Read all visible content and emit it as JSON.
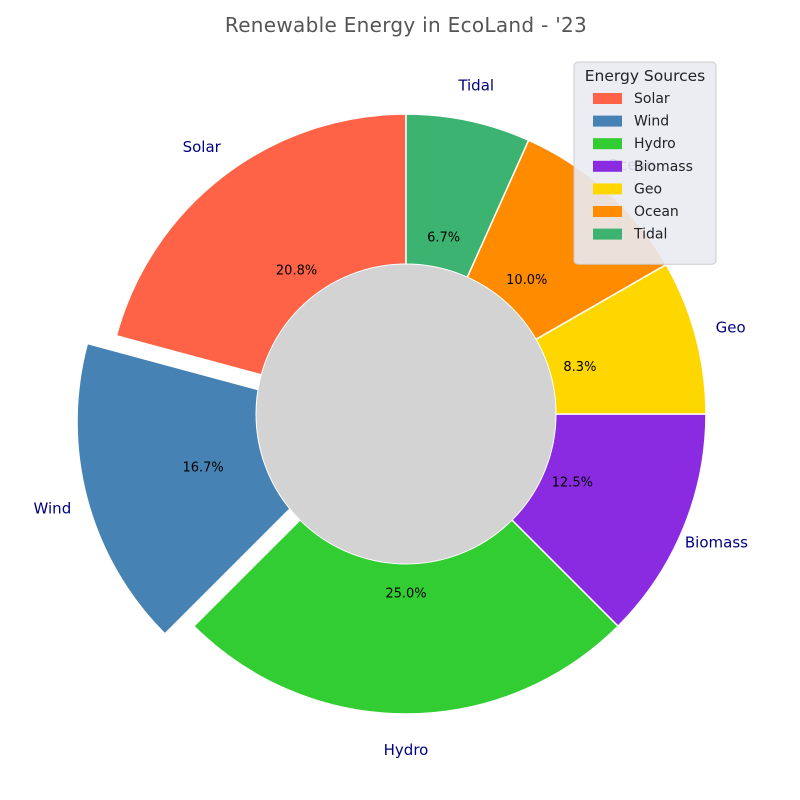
{
  "chart_data": {
    "type": "pie",
    "title": "Renewable Energy in EcoLand - '23",
    "categories": [
      "Solar",
      "Wind",
      "Hydro",
      "Biomass",
      "Geo",
      "Ocean",
      "Tidal"
    ],
    "values": [
      20.8,
      16.7,
      25.0,
      12.5,
      8.3,
      10.0,
      6.7
    ],
    "value_labels": [
      "20.8%",
      "16.7%",
      "25.0%",
      "12.5%",
      "8.3%",
      "10.0%",
      "6.7%"
    ],
    "colors": [
      "#ff6347",
      "#4682b4",
      "#32cd32",
      "#8a2be2",
      "#ffd700",
      "#ff8c00",
      "#3cb371"
    ],
    "exploded": [
      "Wind"
    ],
    "donut": true,
    "center_color": "#d3d3d3",
    "start_angle_deg": 90,
    "direction": "counterclockwise",
    "legend": {
      "title": "Energy Sources",
      "placement": "top-right",
      "entries": [
        "Solar",
        "Wind",
        "Hydro",
        "Biomass",
        "Geo",
        "Ocean",
        "Tidal"
      ]
    }
  }
}
